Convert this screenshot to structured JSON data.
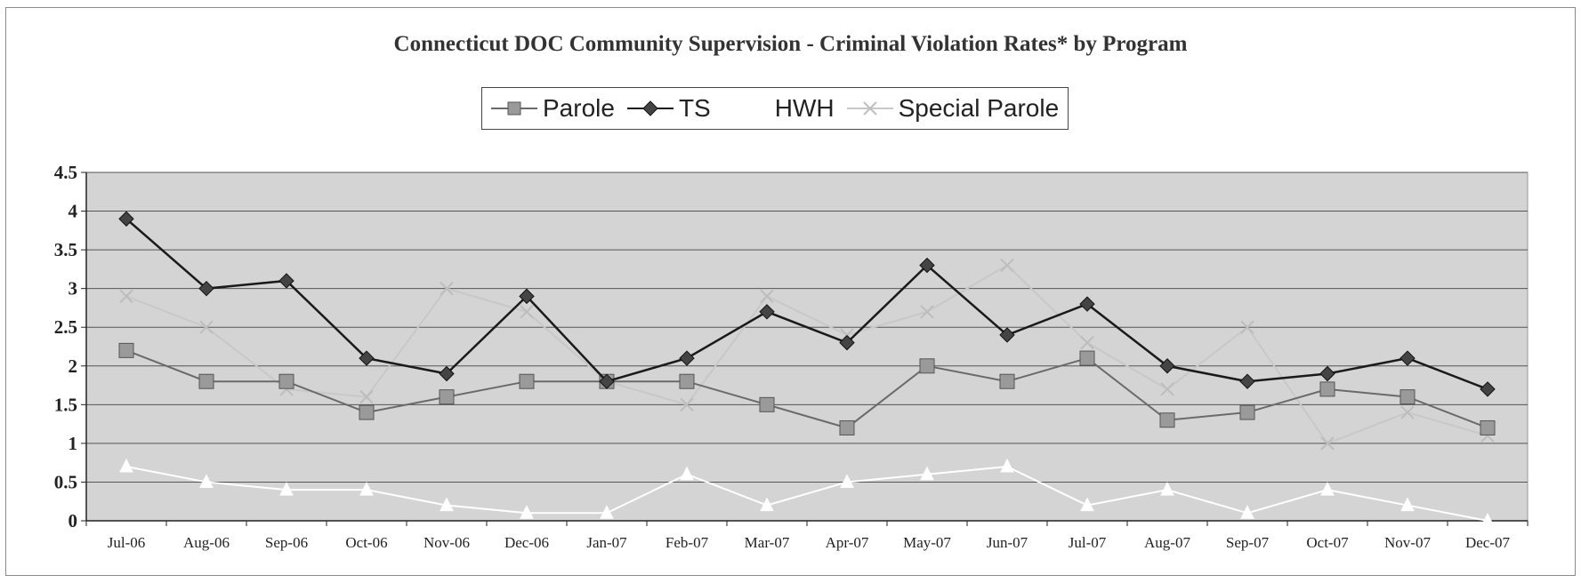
{
  "chart_data": {
    "type": "line",
    "title": "Connecticut DOC Community Supervision - Criminal Violation Rates* by Program",
    "categories": [
      "Jul-06",
      "Aug-06",
      "Sep-06",
      "Oct-06",
      "Nov-06",
      "Dec-06",
      "Jan-07",
      "Feb-07",
      "Mar-07",
      "Apr-07",
      "May-07",
      "Jun-07",
      "Jul-07",
      "Aug-07",
      "Sep-07",
      "Oct-07",
      "Nov-07",
      "Dec-07"
    ],
    "ylim": [
      0,
      4.5
    ],
    "yticks": [
      "0",
      "0.5",
      "1",
      "1.5",
      "2",
      "2.5",
      "3",
      "3.5",
      "4",
      "4.5"
    ],
    "grid": true,
    "legend_position": "top",
    "xlabel": "",
    "ylabel": "",
    "series": [
      {
        "name": "Parole",
        "color": "#6a6a6a",
        "marker": "square",
        "values": [
          2.2,
          1.8,
          1.8,
          1.4,
          1.6,
          1.8,
          1.8,
          1.8,
          1.5,
          1.2,
          2.0,
          1.8,
          2.1,
          1.3,
          1.4,
          1.7,
          1.6,
          1.2
        ]
      },
      {
        "name": "TS",
        "color": "#1a1a1a",
        "marker": "diamond",
        "values": [
          3.9,
          3.0,
          3.1,
          2.1,
          1.9,
          2.9,
          1.8,
          2.1,
          2.7,
          2.3,
          3.3,
          2.4,
          2.8,
          2.0,
          1.8,
          1.9,
          2.1,
          1.7
        ]
      },
      {
        "name": "HWH",
        "color": "#ffffff",
        "marker": "triangle",
        "values": [
          0.7,
          0.5,
          0.4,
          0.4,
          0.2,
          0.1,
          0.1,
          0.6,
          0.2,
          0.5,
          0.6,
          0.7,
          0.2,
          0.4,
          0.1,
          0.4,
          0.2,
          0.0
        ]
      },
      {
        "name": "Special Parole",
        "color": "#c8c8c8",
        "marker": "x",
        "values": [
          2.9,
          2.5,
          1.7,
          1.6,
          3.0,
          2.7,
          1.8,
          1.5,
          2.9,
          2.4,
          2.7,
          3.3,
          2.3,
          1.7,
          2.5,
          1.0,
          1.4,
          1.1
        ]
      }
    ]
  },
  "legend": {
    "parole": "Parole",
    "ts": "TS",
    "hwh": "HWH",
    "special_parole": "Special Parole"
  }
}
